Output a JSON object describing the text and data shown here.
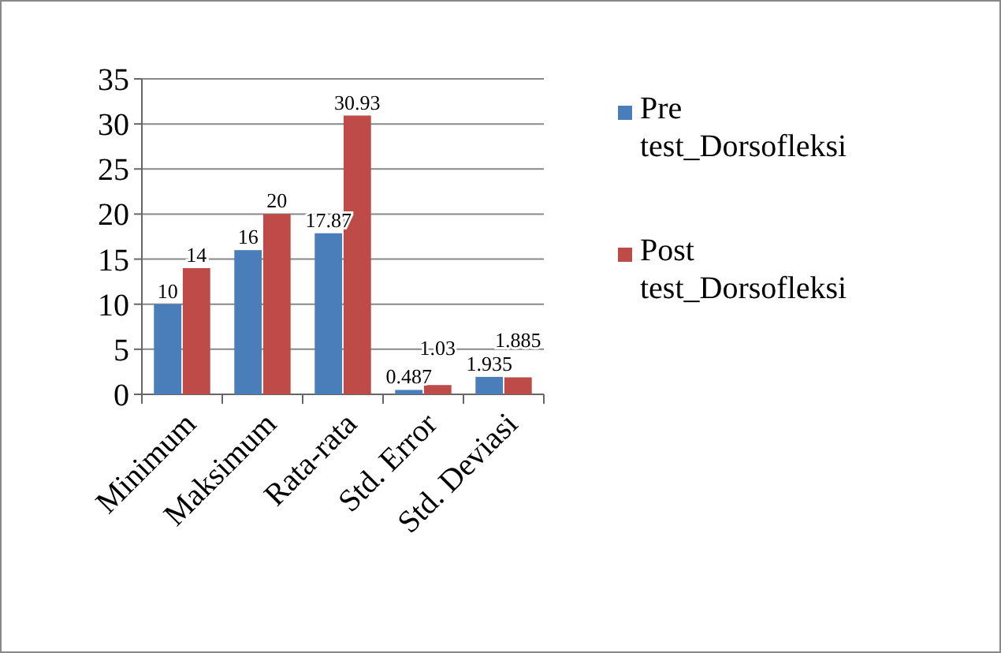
{
  "chart_data": {
    "type": "bar",
    "categories": [
      "Minimum",
      "Maksimum",
      "Rata-rata",
      "Std. Error",
      "Std. Deviasi"
    ],
    "series": [
      {
        "name": "Pre test_Dorsofleksi",
        "color": "#4a7ebb",
        "values": [
          10,
          16,
          17.87,
          0.487,
          1.935
        ]
      },
      {
        "name": "Post test_Dorsofleksi",
        "color": "#be4b48",
        "values": [
          14,
          20,
          30.93,
          1.03,
          1.885
        ]
      }
    ],
    "ylim": [
      0,
      35
    ],
    "yticks": [
      0,
      5,
      10,
      15,
      20,
      25,
      30,
      35
    ],
    "grid": "y",
    "legend": "right",
    "data_labels": true
  }
}
